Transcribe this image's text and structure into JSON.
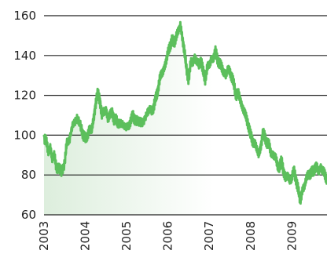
{
  "chart_data": {
    "type": "area",
    "title": "",
    "xlabel": "",
    "ylabel": "",
    "x_ticks": [
      "2003",
      "2004",
      "2005",
      "2006",
      "2007",
      "2008",
      "2009"
    ],
    "y_ticks": [
      "60",
      "80",
      "100",
      "120",
      "140",
      "160"
    ],
    "ylim": [
      60,
      160
    ],
    "xlim": [
      2003.0,
      2009.85
    ],
    "grid": "horizontal",
    "colors": {
      "line": "#5cbf5c",
      "area_start": "#ddeedd",
      "area_end": "#ffffff",
      "grid": "#222222"
    },
    "series": [
      {
        "x": [
          2003.0,
          2003.05,
          2003.1,
          2003.15,
          2003.2,
          2003.25,
          2003.3,
          2003.35,
          2003.42,
          2003.5,
          2003.55,
          2003.62,
          2003.7,
          2003.8,
          2003.9,
          2003.95,
          2004.0,
          2004.05,
          2004.1,
          2004.15,
          2004.2,
          2004.25,
          2004.3,
          2004.35,
          2004.4,
          2004.45,
          2004.5,
          2004.55,
          2004.6,
          2004.65,
          2004.7,
          2004.75,
          2004.8,
          2004.9,
          2005.0,
          2005.05,
          2005.1,
          2005.15,
          2005.2,
          2005.3,
          2005.4,
          2005.5,
          2005.55,
          2005.6,
          2005.65,
          2005.7,
          2005.75,
          2005.8,
          2005.85,
          2005.9,
          2005.95,
          2006.0,
          2006.05,
          2006.1,
          2006.15,
          2006.2,
          2006.25,
          2006.3,
          2006.35,
          2006.4,
          2006.45,
          2006.5,
          2006.55,
          2006.6,
          2006.65,
          2006.7,
          2006.75,
          2006.8,
          2006.85,
          2006.9,
          2006.95,
          2007.0,
          2007.05,
          2007.1,
          2007.15,
          2007.2,
          2007.25,
          2007.3,
          2007.35,
          2007.4,
          2007.45,
          2007.5,
          2007.55,
          2007.6,
          2007.65,
          2007.7,
          2007.75,
          2007.8,
          2007.85,
          2007.9,
          2007.95,
          2008.0,
          2008.05,
          2008.1,
          2008.15,
          2008.2,
          2008.25,
          2008.3,
          2008.35,
          2008.4,
          2008.45,
          2008.5,
          2008.55,
          2008.6,
          2008.65,
          2008.7,
          2008.75,
          2008.8,
          2008.85,
          2008.9,
          2008.95,
          2009.0,
          2009.05,
          2009.1,
          2009.15,
          2009.2,
          2009.25,
          2009.3,
          2009.35,
          2009.4,
          2009.45,
          2009.5,
          2009.55,
          2009.6,
          2009.65,
          2009.7,
          2009.75,
          2009.8,
          2009.85
        ],
        "values": [
          99,
          97,
          92,
          94,
          88,
          90,
          84,
          83,
          82,
          86,
          96,
          98,
          106,
          108,
          104,
          100,
          98,
          100,
          103,
          102,
          108,
          116,
          121,
          118,
          110,
          112,
          113,
          108,
          110,
          112,
          107,
          108,
          106,
          105,
          104,
          105,
          107,
          110,
          108,
          106,
          107,
          111,
          113,
          112,
          114,
          118,
          122,
          128,
          131,
          133,
          137,
          141,
          145,
          148,
          146,
          150,
          152,
          155,
          149,
          142,
          133,
          128,
          136,
          137,
          139,
          137,
          135,
          138,
          132,
          128,
          134,
          135,
          138,
          139,
          142,
          138,
          136,
          134,
          132,
          130,
          133,
          132,
          129,
          125,
          120,
          121,
          118,
          114,
          112,
          108,
          105,
          100,
          97,
          96,
          93,
          90,
          95,
          101,
          99,
          96,
          95,
          91,
          90,
          89,
          85,
          84,
          87,
          82,
          78,
          80,
          77,
          79,
          82,
          78,
          73,
          67,
          72,
          74,
          78,
          81,
          80,
          82,
          83,
          84,
          82,
          84,
          82,
          80,
          78
        ]
      }
    ]
  }
}
